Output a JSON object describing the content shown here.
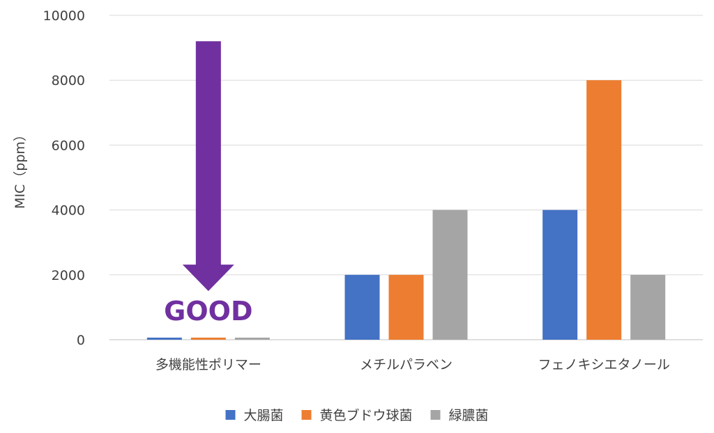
{
  "chart_data": {
    "type": "bar",
    "title": "",
    "xlabel": "",
    "ylabel": "MIC（ppm）",
    "ylim": [
      0,
      10000
    ],
    "yticks": [
      0,
      2000,
      4000,
      6000,
      8000,
      10000
    ],
    "grid": true,
    "legend_position": "bottom",
    "categories": [
      "多機能性ポリマー",
      "メチルパラベン",
      "フェノキシエタノール"
    ],
    "series": [
      {
        "name": "大腸菌",
        "color": "#4472C4",
        "values": [
          50,
          2000,
          4000
        ]
      },
      {
        "name": "黄色ブドウ球菌",
        "color": "#ED7D31",
        "values": [
          50,
          2000,
          8000
        ]
      },
      {
        "name": "緑膿菌",
        "color": "#A5A5A5",
        "values": [
          50,
          4000,
          2000
        ]
      }
    ],
    "annotation": {
      "text": "GOOD",
      "color": "#7030A0",
      "arrow_direction": "down",
      "arrow_from_value": 9200,
      "arrow_to_value": 1500,
      "category_index": 0
    }
  }
}
